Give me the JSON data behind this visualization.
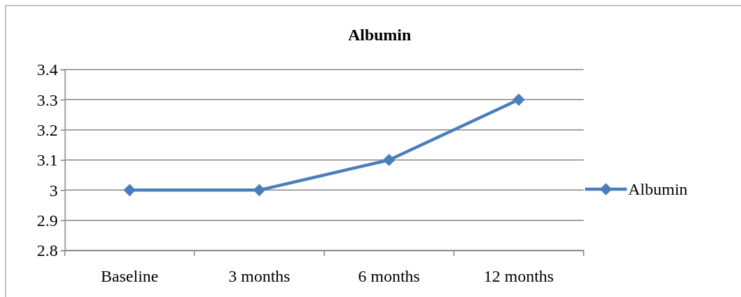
{
  "chart_data": {
    "type": "line",
    "title": "Albumin",
    "categories": [
      "Baseline",
      "3 months",
      "6 months",
      "12 months"
    ],
    "series": [
      {
        "name": "Albumin",
        "color": "#4a7ebb",
        "values": [
          3.0,
          3.0,
          3.1,
          3.3
        ]
      }
    ],
    "ylim": [
      2.8,
      3.4
    ],
    "yticks": [
      2.8,
      2.9,
      3,
      3.1,
      3.2,
      3.3,
      3.4
    ],
    "grid": "y",
    "legend": "right",
    "marker": "diamond",
    "line_style": "solid"
  }
}
